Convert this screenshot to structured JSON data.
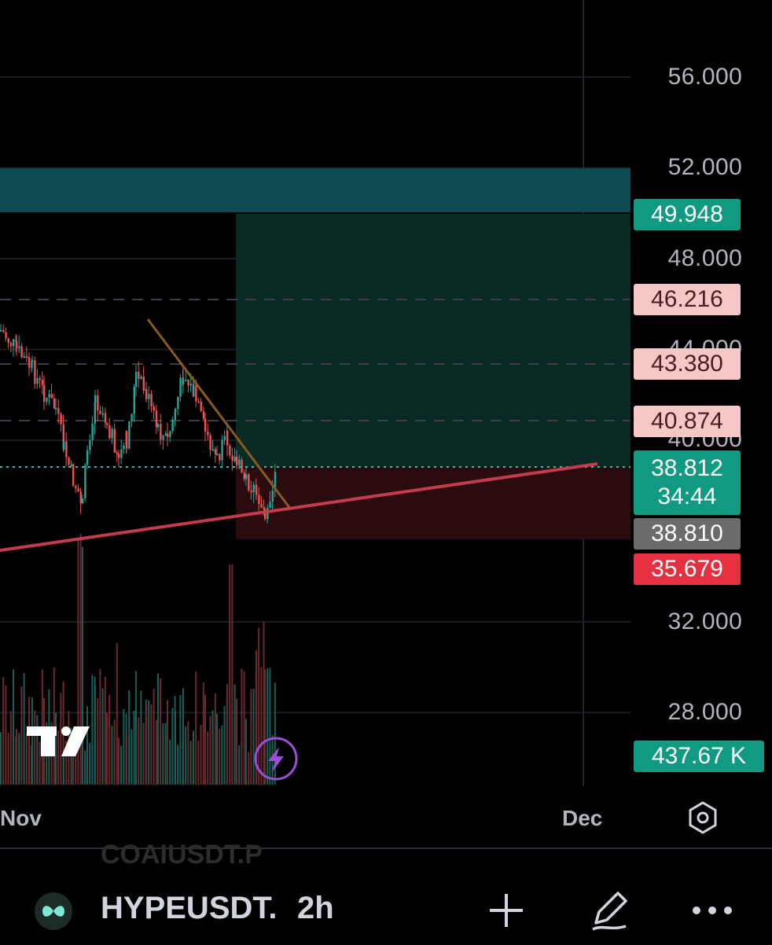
{
  "price_axis": {
    "labels": [
      {
        "text": "56.000",
        "price": 56
      },
      {
        "text": "52.000",
        "price": 52
      },
      {
        "text": "48.000",
        "price": 48
      },
      {
        "text": "44.000",
        "price": 44
      },
      {
        "text": "40.000",
        "price": 40
      },
      {
        "text": "32.000",
        "price": 32
      },
      {
        "text": "28.000",
        "price": 28
      }
    ]
  },
  "tags": {
    "target": "49.948",
    "level_1": "46.216",
    "level_2": "43.380",
    "level_3": "40.874",
    "last_price": "38.812",
    "countdown": "34:44",
    "entry": "38.810",
    "stop": "35.679",
    "volume": "437.67 K"
  },
  "time_axis": {
    "nov": "Nov",
    "dec": "Dec"
  },
  "toolbar": {
    "ghost_symbol": "COAIUSDT.P",
    "symbol": "HYPEUSDT.",
    "timeframe": "2h"
  },
  "colors": {
    "up": "#26a69a",
    "down": "#ef5350",
    "zone_teal": "#0d4a52",
    "profit_zone": "#0b2a25",
    "loss_zone": "#2a0c0e",
    "trend_red": "#c43a4e",
    "trend_orange": "#8a5a20",
    "accent_purple": "#9c4fd6"
  },
  "icons": [
    "tradingview-logo-icon",
    "lightning-icon",
    "settings-hexagon-icon",
    "plus-icon",
    "pen-icon",
    "more-icon"
  ]
}
